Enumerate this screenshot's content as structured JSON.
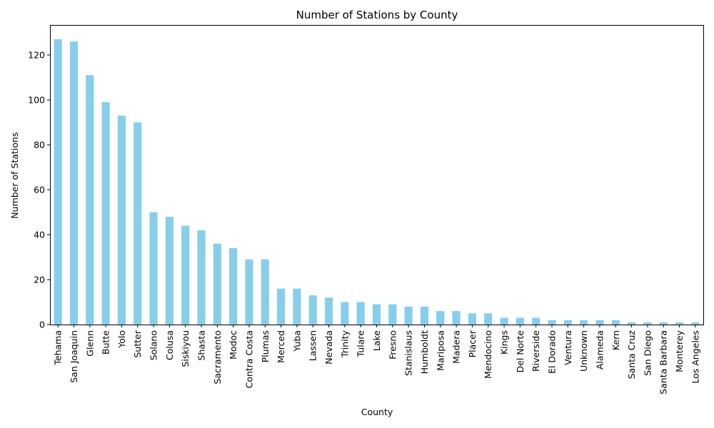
{
  "chart_data": {
    "type": "bar",
    "title": "Number of Stations by County",
    "xlabel": "County",
    "ylabel": "Number of Stations",
    "ylim": [
      0,
      133.35
    ],
    "yticks": [
      0,
      20,
      40,
      60,
      80,
      100,
      120
    ],
    "bar_color": "#87ceeb",
    "grid": false,
    "legend": "none",
    "categories": [
      "Tehama",
      "San Joaquin",
      "Glenn",
      "Butte",
      "Yolo",
      "Sutter",
      "Solano",
      "Colusa",
      "Siskiyou",
      "Shasta",
      "Sacramento",
      "Modoc",
      "Contra Costa",
      "Plumas",
      "Merced",
      "Yuba",
      "Lassen",
      "Nevada",
      "Trinity",
      "Tulare",
      "Lake",
      "Fresno",
      "Stanislaus",
      "Humboldt",
      "Mariposa",
      "Madera",
      "Placer",
      "Mendocino",
      "Kings",
      "Del Norte",
      "Riverside",
      "El Dorado",
      "Ventura",
      "Unknown",
      "Alameda",
      "Kern",
      "Santa Cruz",
      "San Diego",
      "Santa Barbara",
      "Monterey",
      "Los Angeles"
    ],
    "values": [
      127,
      126,
      111,
      99,
      93,
      90,
      50,
      48,
      44,
      42,
      36,
      34,
      29,
      29,
      16,
      16,
      13,
      12,
      10,
      10,
      9,
      9,
      8,
      8,
      6,
      6,
      5,
      5,
      3,
      3,
      3,
      2,
      2,
      2,
      2,
      2,
      1,
      1,
      1,
      1,
      1
    ]
  }
}
